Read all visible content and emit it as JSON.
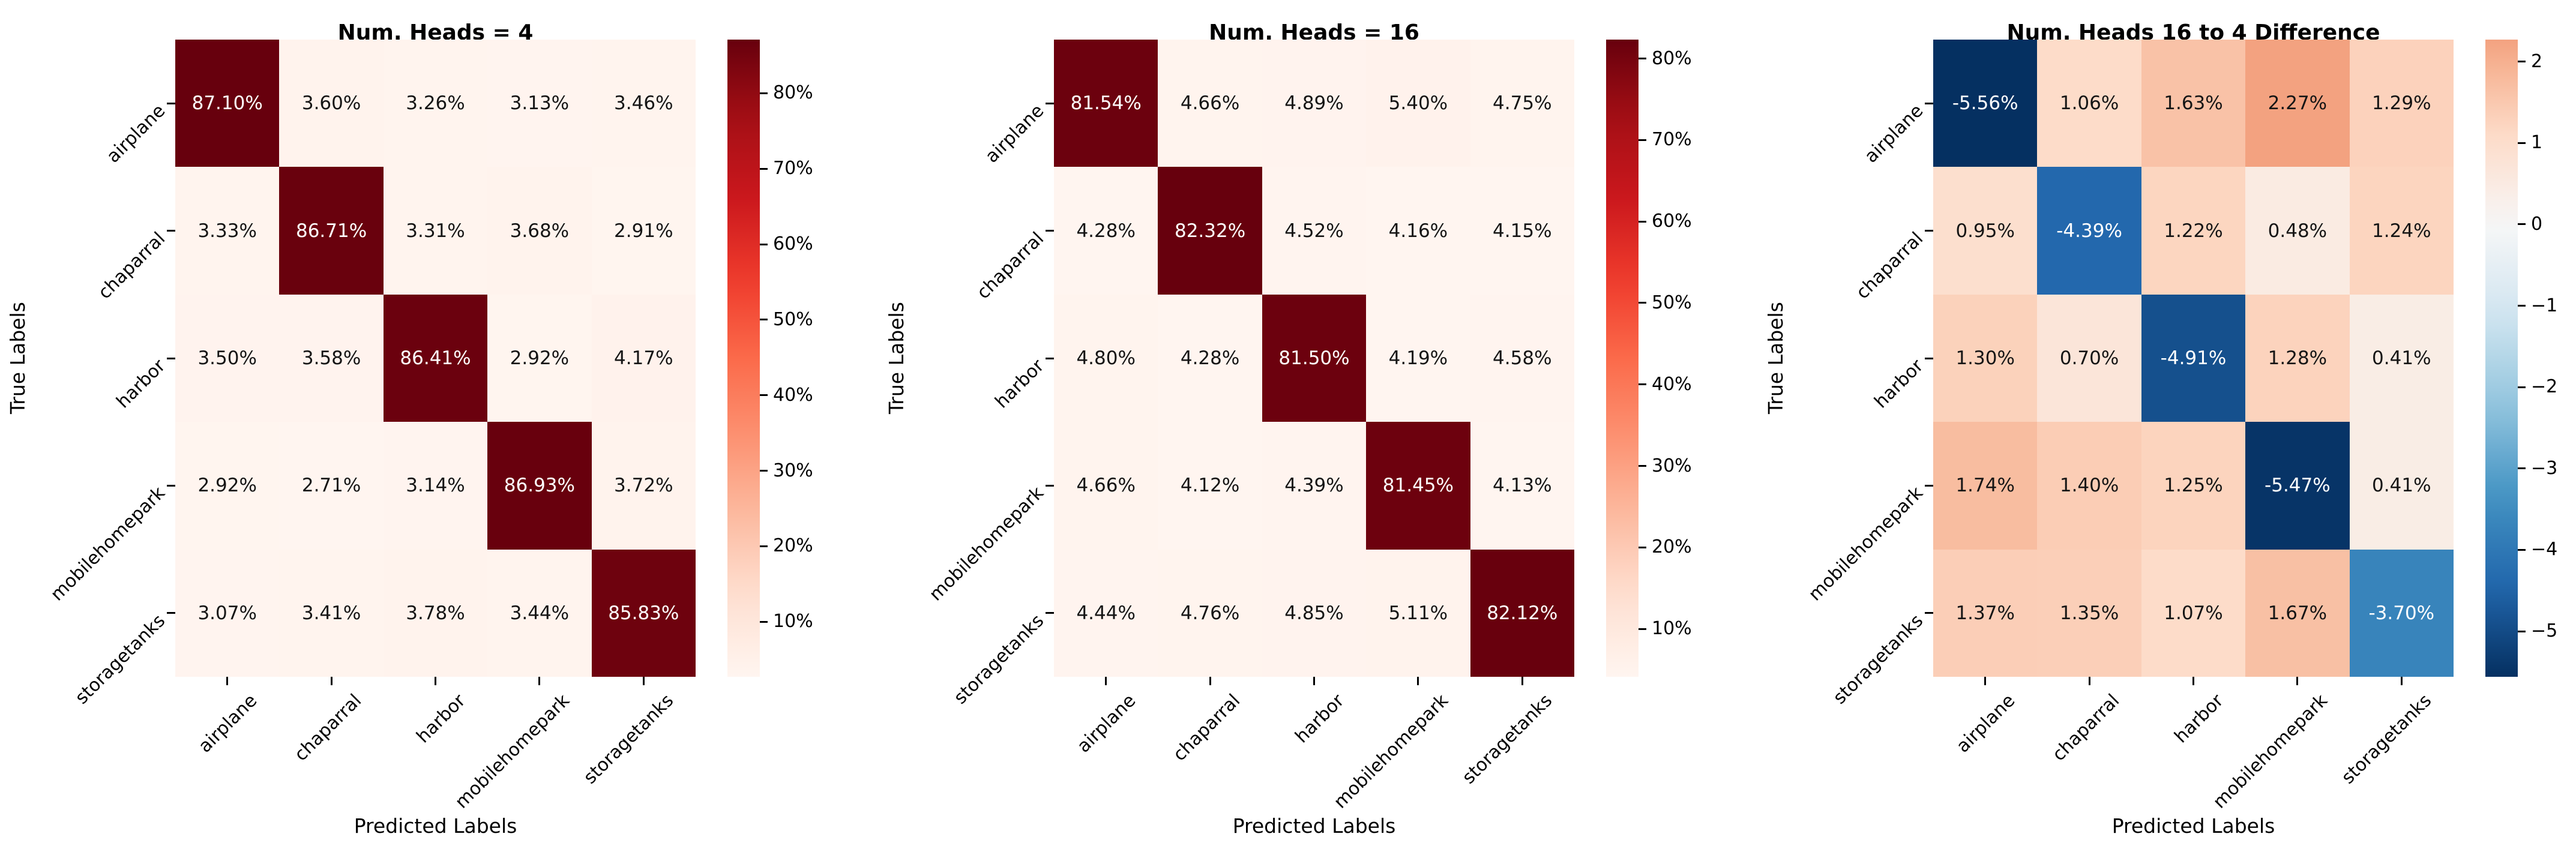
{
  "figure_background": "#ffffff",
  "shared": {
    "xlabel": "Predicted Labels",
    "ylabel": "True Labels",
    "categories": [
      "airplane",
      "chaparral",
      "harbor",
      "mobilehomepark",
      "storagetanks"
    ]
  },
  "chart_data": [
    {
      "type": "heatmap",
      "title": "Num. Heads = 4",
      "xlabel": "Predicted Labels",
      "ylabel": "True Labels",
      "x_categories": [
        "airplane",
        "chaparral",
        "harbor",
        "mobilehomepark",
        "storagetanks"
      ],
      "y_categories": [
        "airplane",
        "chaparral",
        "harbor",
        "mobilehomepark",
        "storagetanks"
      ],
      "values_percent": [
        [
          87.1,
          3.6,
          3.26,
          3.13,
          3.46
        ],
        [
          3.33,
          86.71,
          3.31,
          3.68,
          2.91
        ],
        [
          3.5,
          3.58,
          86.41,
          2.92,
          4.17
        ],
        [
          2.92,
          2.71,
          3.14,
          86.93,
          3.72
        ],
        [
          3.07,
          3.41,
          3.78,
          3.44,
          85.83
        ]
      ],
      "annotation_suffix": "%",
      "colormap": "Reds",
      "vmin": 2.71,
      "vmax": 87.1,
      "grid": false,
      "colorbar": {
        "position": "right",
        "ticks": [
          {
            "value": 10,
            "label": "10%"
          },
          {
            "value": 20,
            "label": "20%"
          },
          {
            "value": 30,
            "label": "30%"
          },
          {
            "value": 40,
            "label": "40%"
          },
          {
            "value": 50,
            "label": "50%"
          },
          {
            "value": 60,
            "label": "60%"
          },
          {
            "value": 70,
            "label": "70%"
          },
          {
            "value": 80,
            "label": "80%"
          }
        ]
      }
    },
    {
      "type": "heatmap",
      "title": "Num. Heads = 16",
      "xlabel": "Predicted Labels",
      "ylabel": "True Labels",
      "x_categories": [
        "airplane",
        "chaparral",
        "harbor",
        "mobilehomepark",
        "storagetanks"
      ],
      "y_categories": [
        "airplane",
        "chaparral",
        "harbor",
        "mobilehomepark",
        "storagetanks"
      ],
      "values_percent": [
        [
          81.54,
          4.66,
          4.89,
          5.4,
          4.75
        ],
        [
          4.28,
          82.32,
          4.52,
          4.16,
          4.15
        ],
        [
          4.8,
          4.28,
          81.5,
          4.19,
          4.58
        ],
        [
          4.66,
          4.12,
          4.39,
          81.45,
          4.13
        ],
        [
          4.44,
          4.76,
          4.85,
          5.11,
          82.12
        ]
      ],
      "annotation_suffix": "%",
      "colormap": "Reds",
      "vmin": 4.12,
      "vmax": 82.32,
      "grid": false,
      "colorbar": {
        "position": "right",
        "ticks": [
          {
            "value": 10,
            "label": "10%"
          },
          {
            "value": 20,
            "label": "20%"
          },
          {
            "value": 30,
            "label": "30%"
          },
          {
            "value": 40,
            "label": "40%"
          },
          {
            "value": 50,
            "label": "50%"
          },
          {
            "value": 60,
            "label": "60%"
          },
          {
            "value": 70,
            "label": "70%"
          },
          {
            "value": 80,
            "label": "80%"
          }
        ]
      }
    },
    {
      "type": "heatmap",
      "title": "Num. Heads 16 to 4 Difference",
      "xlabel": "Predicted Labels",
      "ylabel": "True Labels",
      "x_categories": [
        "airplane",
        "chaparral",
        "harbor",
        "mobilehomepark",
        "storagetanks"
      ],
      "y_categories": [
        "airplane",
        "chaparral",
        "harbor",
        "mobilehomepark",
        "storagetanks"
      ],
      "values_percent": [
        [
          -5.56,
          1.06,
          1.63,
          2.27,
          1.29
        ],
        [
          0.95,
          -4.39,
          1.22,
          0.48,
          1.24
        ],
        [
          1.3,
          0.7,
          -4.91,
          1.28,
          0.41
        ],
        [
          1.74,
          1.4,
          1.25,
          -5.47,
          0.41
        ],
        [
          1.37,
          1.35,
          1.07,
          1.67,
          -3.7
        ]
      ],
      "annotation_suffix": "%",
      "colormap": "RdBu_r",
      "norm": {
        "type": "symmetric_zero_center",
        "vabs": 5.56
      },
      "vmin": -5.56,
      "vmax": 2.27,
      "grid": false,
      "colorbar": {
        "position": "right",
        "ticks": [
          {
            "value": 2,
            "label": "2"
          },
          {
            "value": 1,
            "label": "1"
          },
          {
            "value": 0,
            "label": "0"
          },
          {
            "value": -1,
            "label": "−1"
          },
          {
            "value": -2,
            "label": "−2"
          },
          {
            "value": -3,
            "label": "−3"
          },
          {
            "value": -4,
            "label": "−4"
          },
          {
            "value": -5,
            "label": "−5"
          }
        ]
      }
    }
  ]
}
